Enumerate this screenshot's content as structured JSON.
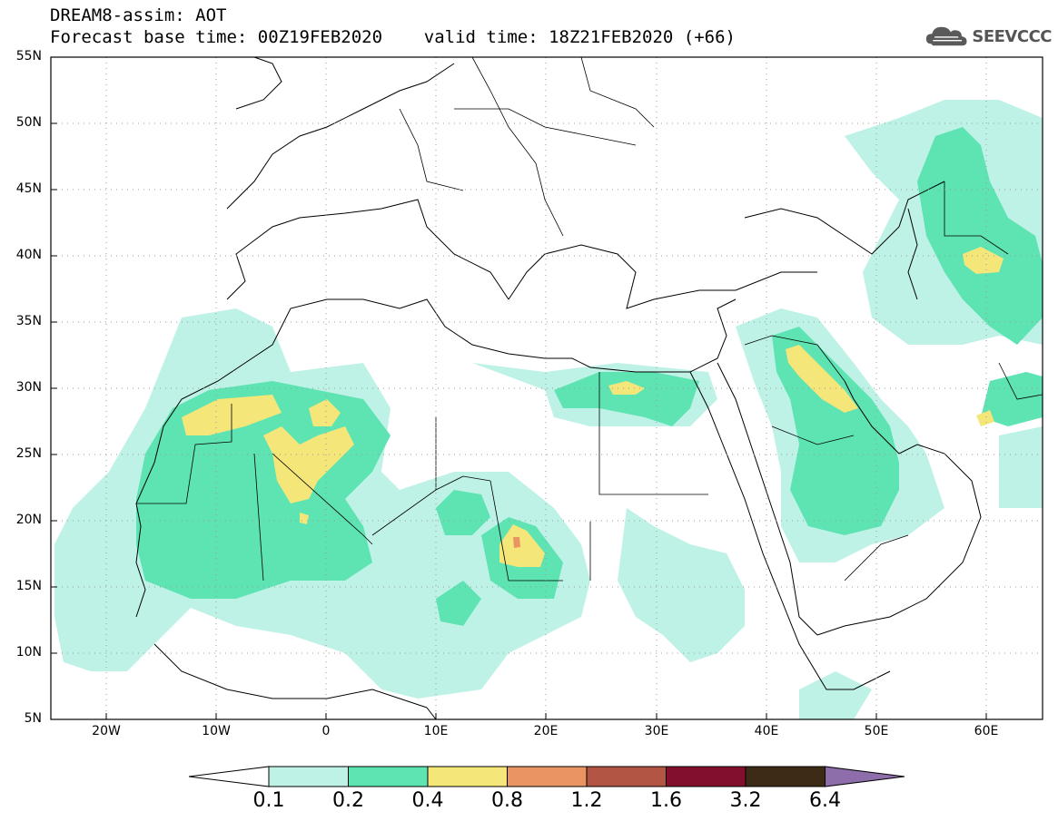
{
  "title": {
    "line1": "DREAM8-assim: AOT",
    "line2": "Forecast base time: 00Z19FEB2020    valid time: 18Z21FEB2020 (+66)"
  },
  "logo": {
    "text": "SEEVCCC",
    "icon": "cloud-icon"
  },
  "map": {
    "lon_range": [
      -25,
      65
    ],
    "lat_range": [
      5,
      55
    ],
    "lat_labels": [
      "55N",
      "50N",
      "45N",
      "40N",
      "35N",
      "30N",
      "25N",
      "20N",
      "15N",
      "10N",
      "5N"
    ],
    "lon_labels": [
      "20W",
      "10W",
      "0",
      "10E",
      "20E",
      "30E",
      "40E",
      "50E",
      "60E"
    ],
    "grid": "dotted"
  },
  "colorbar": {
    "labels": [
      "0.1",
      "0.2",
      "0.4",
      "0.8",
      "1.2",
      "1.6",
      "3.2",
      "6.4"
    ],
    "colors": [
      "#ffffff",
      "#bff2e6",
      "#5ee3b3",
      "#f5e67a",
      "#eb9463",
      "#b25545",
      "#820f2b",
      "#3d2a17",
      "#8e6eaa"
    ]
  }
}
